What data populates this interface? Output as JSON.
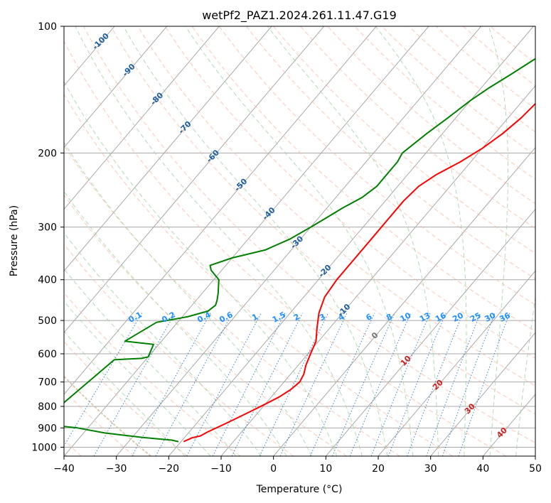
{
  "chart_data": {
    "type": "line",
    "title": "wetPf2_PAZ1.2024.261.11.47.G19",
    "xlabel": "Temperature (°C)",
    "ylabel": "Pressure (hPa)",
    "xlim": [
      -40,
      50
    ],
    "ylim": [
      1050,
      100
    ],
    "y_scale": "log",
    "skew": "skew-T log-p diagram",
    "grid": true,
    "x_ticks": [
      -40,
      -30,
      -20,
      -10,
      0,
      10,
      20,
      30,
      40,
      50
    ],
    "y_ticks": [
      100,
      200,
      300,
      400,
      500,
      600,
      700,
      800,
      900,
      1000
    ],
    "series": [
      {
        "color": "#ff0000",
        "points": [
          [
            -19.5,
            970
          ],
          [
            -18.5,
            950
          ],
          [
            -17.2,
            940
          ],
          [
            -16.5,
            920
          ],
          [
            -14.5,
            880
          ],
          [
            -13,
            850
          ],
          [
            -11.5,
            820
          ],
          [
            -10,
            790
          ],
          [
            -8.5,
            760
          ],
          [
            -7.5,
            730
          ],
          [
            -7,
            700
          ],
          [
            -7.5,
            670
          ],
          [
            -8.5,
            640
          ],
          [
            -9.5,
            600
          ],
          [
            -10.5,
            560
          ],
          [
            -12.5,
            520
          ],
          [
            -14.5,
            480
          ],
          [
            -16,
            440
          ],
          [
            -16.5,
            400
          ],
          [
            -16.5,
            360
          ],
          [
            -16.5,
            320
          ],
          [
            -16.5,
            290
          ],
          [
            -16.5,
            260
          ],
          [
            -16,
            240
          ],
          [
            -14.5,
            225
          ],
          [
            -12,
            210
          ],
          [
            -10,
            195
          ],
          [
            -8.5,
            180
          ],
          [
            -7.5,
            165
          ],
          [
            -7,
            150
          ],
          [
            -5.5,
            140
          ],
          [
            -3,
            130
          ],
          [
            -1,
            122
          ],
          [
            1,
            114
          ],
          [
            2.5,
            107
          ],
          [
            3.5,
            100
          ]
        ]
      },
      {
        "color": "#008000",
        "points": [
          [
            -20.5,
            970
          ],
          [
            -22,
            962
          ],
          [
            -25,
            955
          ],
          [
            -28,
            948
          ],
          [
            -36,
            925
          ],
          [
            -42,
            900
          ],
          [
            -50,
            880
          ],
          [
            -46,
            620
          ],
          [
            -41,
            615
          ],
          [
            -40,
            610
          ],
          [
            -41,
            570
          ],
          [
            -47,
            560
          ],
          [
            -44,
            505
          ],
          [
            -39,
            490
          ],
          [
            -36,
            475
          ],
          [
            -35.5,
            460
          ],
          [
            -36,
            448
          ],
          [
            -37,
            430
          ],
          [
            -38,
            415
          ],
          [
            -39,
            400
          ],
          [
            -42,
            380
          ],
          [
            -43,
            370
          ],
          [
            -40,
            355
          ],
          [
            -35,
            340
          ],
          [
            -32,
            320
          ],
          [
            -30,
            300
          ],
          [
            -28.5,
            285
          ],
          [
            -27,
            270
          ],
          [
            -25,
            255
          ],
          [
            -24,
            240
          ],
          [
            -24,
            225
          ],
          [
            -24,
            210
          ],
          [
            -24.5,
            200
          ],
          [
            -23,
            180
          ],
          [
            -21.5,
            165
          ],
          [
            -20,
            150
          ],
          [
            -18.5,
            140
          ],
          [
            -16.5,
            130
          ],
          [
            -14.5,
            120
          ],
          [
            -12,
            110
          ],
          [
            -10,
            103
          ],
          [
            -9,
            100
          ]
        ]
      }
    ],
    "annotations": {
      "dry_adiabat_labels_degC": [
        -100,
        -90,
        -80,
        -70,
        -60,
        -50,
        -40,
        -30,
        -20,
        -10,
        0,
        10,
        20,
        30,
        40
      ],
      "mixing_ratio_labels_gkg": [
        "0.1",
        "0.2",
        "0.4",
        "0.6",
        "1",
        "1.5",
        "2",
        "3",
        "4",
        "6",
        "8",
        "10",
        "13",
        "16",
        "20",
        "25",
        "30",
        "36"
      ]
    },
    "colors": {
      "isotherm": "#a8a8a8",
      "dry_adiabat": "#fcb59e",
      "moist_adiabat": "#9fd39f",
      "mixing_ratio": "#1f77d4",
      "dry_adiabat_label_cold": "#1f5fa0",
      "dry_adiabat_label_warm": "#cc2020",
      "zero_label": "#777777",
      "mixing_label": "#1e90ff",
      "envelope": "#d9c4a8"
    }
  }
}
